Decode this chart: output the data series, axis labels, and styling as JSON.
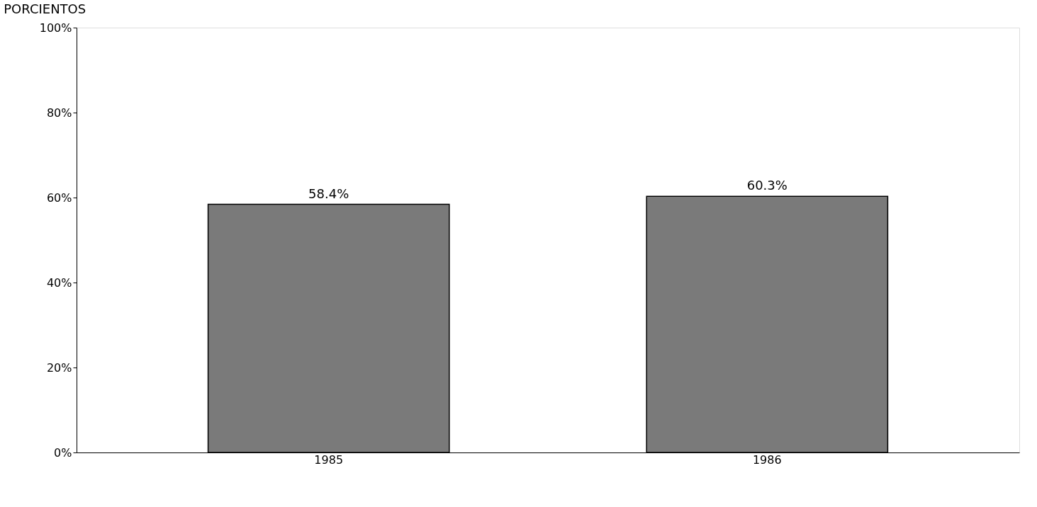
{
  "chart_data": {
    "type": "bar",
    "ylabel": "PORCIENTOS",
    "categories": [
      "1985",
      "1986"
    ],
    "values": [
      58.4,
      60.3
    ],
    "value_labels": [
      "58.4%",
      "60.3%"
    ],
    "color": "#7a7a7a",
    "ylim": [
      0,
      100
    ],
    "yticks": [
      {
        "value": 0,
        "label": "0%"
      },
      {
        "value": 20,
        "label": "20%"
      },
      {
        "value": 40,
        "label": "40%"
      },
      {
        "value": 60,
        "label": "60%"
      },
      {
        "value": 80,
        "label": "80%"
      },
      {
        "value": 100,
        "label": "100%"
      }
    ],
    "grid": false
  }
}
